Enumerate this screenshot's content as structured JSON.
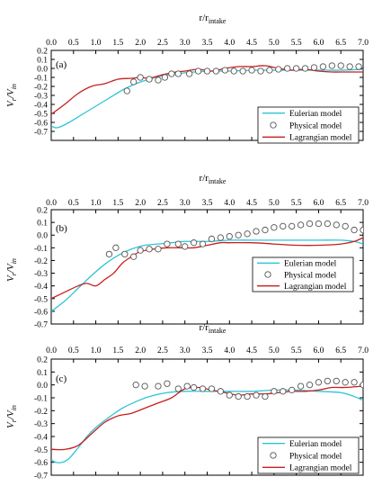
{
  "colors": {
    "eulerian": "#2ec4d6",
    "lagrangian": "#c81e1e",
    "physical": "#555555",
    "axis": "#000000"
  },
  "chart_data": [
    {
      "type": "line",
      "panel_label": "(a)",
      "xlabel": "r/r",
      "xlabel_sub": "intake",
      "ylabel": "V",
      "ylabel_sub1": "r",
      "ylabel_mid": "/V",
      "ylabel_sub2": "in",
      "xlim": [
        0,
        7
      ],
      "ylim": [
        -0.8,
        0.2
      ],
      "x_ticks": [
        "0.0",
        "0.5",
        "1.0",
        "1.5",
        "2.0",
        "2.5",
        "3.0",
        "3.5",
        "4.0",
        "4.5",
        "5.0",
        "5.5",
        "6.0",
        "6.5",
        "7.0"
      ],
      "y_ticks": [
        "0.2",
        "0.1",
        "0.0",
        "-0.1",
        "-0.2",
        "-0.3",
        "-0.4",
        "-0.5",
        "-0.6",
        "-0.7"
      ],
      "legend": {
        "position": "right",
        "entries": [
          "Eulerian model",
          "Physical model",
          "Lagrangian model"
        ]
      },
      "series": [
        {
          "name": "Eulerian model",
          "kind": "line",
          "x": [
            0,
            0.1,
            0.2,
            0.4,
            0.7,
            1.0,
            1.3,
            1.6,
            1.9,
            2.2,
            2.5,
            2.8,
            3.2,
            3.6,
            4.0,
            4.5,
            5.0,
            5.5,
            6.0,
            6.5,
            7.0
          ],
          "y": [
            -0.64,
            -0.66,
            -0.65,
            -0.6,
            -0.51,
            -0.42,
            -0.33,
            -0.24,
            -0.17,
            -0.12,
            -0.08,
            -0.06,
            -0.04,
            -0.03,
            -0.03,
            -0.02,
            -0.02,
            -0.02,
            -0.02,
            -0.02,
            -0.01
          ]
        },
        {
          "name": "Lagrangian model",
          "kind": "line",
          "x": [
            0,
            0.3,
            0.6,
            0.9,
            1.2,
            1.5,
            1.8,
            2.0,
            2.2,
            2.5,
            2.8,
            3.0,
            3.3,
            3.6,
            3.9,
            4.2,
            4.5,
            4.8,
            5.1,
            5.4,
            5.7,
            6.0,
            6.3,
            6.6,
            6.9,
            7.0
          ],
          "y": [
            -0.51,
            -0.4,
            -0.28,
            -0.2,
            -0.17,
            -0.12,
            -0.11,
            -0.1,
            -0.11,
            -0.07,
            -0.04,
            -0.03,
            -0.01,
            -0.03,
            0.0,
            0.02,
            0.02,
            0.03,
            0.0,
            -0.02,
            -0.01,
            -0.03,
            -0.04,
            -0.04,
            -0.04,
            -0.04
          ]
        },
        {
          "name": "Physical model",
          "kind": "scatter",
          "x": [
            1.7,
            1.85,
            2.0,
            2.2,
            2.4,
            2.55,
            2.7,
            2.85,
            3.1,
            3.3,
            3.5,
            3.7,
            3.9,
            4.1,
            4.3,
            4.5,
            4.7,
            4.9,
            5.1,
            5.3,
            5.5,
            5.7,
            5.9,
            6.1,
            6.3,
            6.5,
            6.7,
            6.9
          ],
          "y": [
            -0.25,
            -0.15,
            -0.1,
            -0.12,
            -0.13,
            -0.1,
            -0.06,
            -0.06,
            -0.06,
            -0.03,
            -0.03,
            -0.03,
            -0.02,
            -0.03,
            -0.03,
            -0.02,
            -0.03,
            -0.02,
            -0.01,
            0.0,
            0.0,
            0.0,
            0.01,
            0.02,
            0.03,
            0.03,
            0.02,
            0.02
          ]
        }
      ]
    },
    {
      "type": "line",
      "panel_label": "(b)",
      "xlabel": "r/r",
      "xlabel_sub": "intake",
      "ylabel": "V",
      "ylabel_sub1": "r",
      "ylabel_mid": "/V",
      "ylabel_sub2": "in",
      "xlim": [
        0,
        7
      ],
      "ylim": [
        -0.7,
        0.2
      ],
      "x_ticks": [
        "0.0",
        "0.5",
        "1.0",
        "1.5",
        "2.0",
        "2.5",
        "3.0",
        "3.5",
        "4.0",
        "4.5",
        "5.0",
        "5.5",
        "6.0",
        "6.5",
        "7.0"
      ],
      "y_ticks": [
        "0.2",
        "0.1",
        "0.0",
        "-0.1",
        "-0.2",
        "-0.3",
        "-0.4",
        "-0.5",
        "-0.6",
        "-0.7"
      ],
      "legend": {
        "position": "right",
        "entries": [
          "Eulerian model",
          "Physical model",
          "Lagrangian model"
        ]
      },
      "series": [
        {
          "name": "Eulerian model",
          "kind": "line",
          "x": [
            0,
            0.3,
            0.6,
            0.9,
            1.2,
            1.5,
            1.8,
            2.1,
            2.4,
            2.7,
            3.0,
            3.5,
            4.0,
            4.5,
            5.0,
            5.5,
            6.0,
            6.5,
            6.8,
            7.0
          ],
          "y": [
            -0.6,
            -0.52,
            -0.42,
            -0.32,
            -0.23,
            -0.16,
            -0.11,
            -0.08,
            -0.07,
            -0.06,
            -0.05,
            -0.05,
            -0.04,
            -0.04,
            -0.04,
            -0.04,
            -0.04,
            -0.04,
            -0.05,
            -0.07
          ]
        },
        {
          "name": "Lagrangian model",
          "kind": "line",
          "x": [
            0,
            0.3,
            0.6,
            0.8,
            1.0,
            1.2,
            1.4,
            1.6,
            1.8,
            2.0,
            2.3,
            2.6,
            2.9,
            3.2,
            3.5,
            3.8,
            4.0,
            4.5,
            5.0,
            5.5,
            6.0,
            6.5,
            6.8,
            7.0
          ],
          "y": [
            -0.5,
            -0.45,
            -0.4,
            -0.38,
            -0.4,
            -0.35,
            -0.3,
            -0.22,
            -0.17,
            -0.13,
            -0.11,
            -0.1,
            -0.1,
            -0.1,
            -0.08,
            -0.06,
            -0.06,
            -0.06,
            -0.07,
            -0.08,
            -0.08,
            -0.07,
            -0.05,
            -0.02
          ]
        },
        {
          "name": "Physical model",
          "kind": "scatter",
          "x": [
            1.3,
            1.45,
            1.65,
            1.85,
            2.0,
            2.2,
            2.4,
            2.6,
            2.85,
            3.0,
            3.2,
            3.4,
            3.6,
            3.8,
            4.0,
            4.2,
            4.4,
            4.6,
            4.8,
            5.0,
            5.2,
            5.4,
            5.6,
            5.8,
            6.0,
            6.2,
            6.4,
            6.6,
            6.8,
            7.0
          ],
          "y": [
            -0.15,
            -0.1,
            -0.15,
            -0.17,
            -0.12,
            -0.11,
            -0.11,
            -0.07,
            -0.07,
            -0.09,
            -0.06,
            -0.07,
            -0.03,
            -0.02,
            -0.01,
            0.0,
            0.01,
            0.03,
            0.04,
            0.06,
            0.07,
            0.07,
            0.08,
            0.09,
            0.09,
            0.09,
            0.08,
            0.07,
            0.04,
            0.04
          ]
        }
      ]
    },
    {
      "type": "line",
      "panel_label": "(c)",
      "xlabel": "r/r",
      "xlabel_sub": "intake",
      "ylabel": "V",
      "ylabel_sub1": "r",
      "ylabel_mid": "/V",
      "ylabel_sub2": "in",
      "xlim": [
        0,
        7
      ],
      "ylim": [
        -0.7,
        0.2
      ],
      "x_ticks": [
        "0.0",
        "0.5",
        "1.0",
        "1.5",
        "2.0",
        "2.5",
        "3.0",
        "3.5",
        "4.0",
        "4.5",
        "5.0",
        "5.5",
        "6.0",
        "6.5",
        "7.0"
      ],
      "y_ticks": [
        "0.2",
        "0.1",
        "0.0",
        "-0.1",
        "-0.2",
        "-0.3",
        "-0.4",
        "-0.5",
        "-0.6",
        "-0.7"
      ],
      "legend": {
        "position": "bottom-right",
        "entries": [
          "Eulerian model",
          "Physical model",
          "Lagrangian model"
        ]
      },
      "series": [
        {
          "name": "Eulerian model",
          "kind": "line",
          "x": [
            0,
            0.1,
            0.25,
            0.4,
            0.6,
            0.8,
            1.0,
            1.3,
            1.6,
            1.9,
            2.2,
            2.6,
            3.0,
            3.5,
            4.0,
            4.5,
            5.0,
            5.5,
            6.0,
            6.5,
            6.8,
            7.0
          ],
          "y": [
            -0.58,
            -0.6,
            -0.6,
            -0.57,
            -0.49,
            -0.4,
            -0.33,
            -0.25,
            -0.18,
            -0.13,
            -0.09,
            -0.06,
            -0.05,
            -0.05,
            -0.05,
            -0.05,
            -0.04,
            -0.04,
            -0.05,
            -0.06,
            -0.09,
            -0.12
          ]
        },
        {
          "name": "Lagrangian model",
          "kind": "line",
          "x": [
            0,
            0.3,
            0.6,
            0.9,
            1.2,
            1.5,
            1.8,
            2.1,
            2.4,
            2.7,
            3.0,
            3.3,
            3.6,
            3.9,
            4.2,
            4.5,
            4.8,
            5.1,
            5.4,
            5.7,
            6.0,
            6.3,
            6.6,
            7.0
          ],
          "y": [
            -0.5,
            -0.5,
            -0.47,
            -0.38,
            -0.29,
            -0.24,
            -0.22,
            -0.18,
            -0.14,
            -0.1,
            -0.03,
            -0.02,
            -0.04,
            -0.06,
            -0.08,
            -0.07,
            -0.07,
            -0.06,
            -0.05,
            -0.05,
            -0.04,
            -0.02,
            -0.02,
            -0.01
          ]
        },
        {
          "name": "Physical model",
          "kind": "scatter",
          "x": [
            1.9,
            2.1,
            2.4,
            2.6,
            2.85,
            3.05,
            3.2,
            3.4,
            3.6,
            3.8,
            4.0,
            4.2,
            4.4,
            4.6,
            4.8,
            5.0,
            5.2,
            5.4,
            5.6,
            5.8,
            6.0,
            6.2,
            6.4,
            6.6,
            6.8,
            7.0
          ],
          "y": [
            0.0,
            -0.01,
            -0.01,
            0.01,
            -0.03,
            -0.01,
            -0.02,
            -0.03,
            -0.03,
            -0.05,
            -0.08,
            -0.09,
            -0.09,
            -0.08,
            -0.09,
            -0.05,
            -0.05,
            -0.04,
            -0.01,
            0.0,
            0.02,
            0.03,
            0.03,
            0.02,
            0.02,
            0.0
          ]
        }
      ]
    }
  ]
}
